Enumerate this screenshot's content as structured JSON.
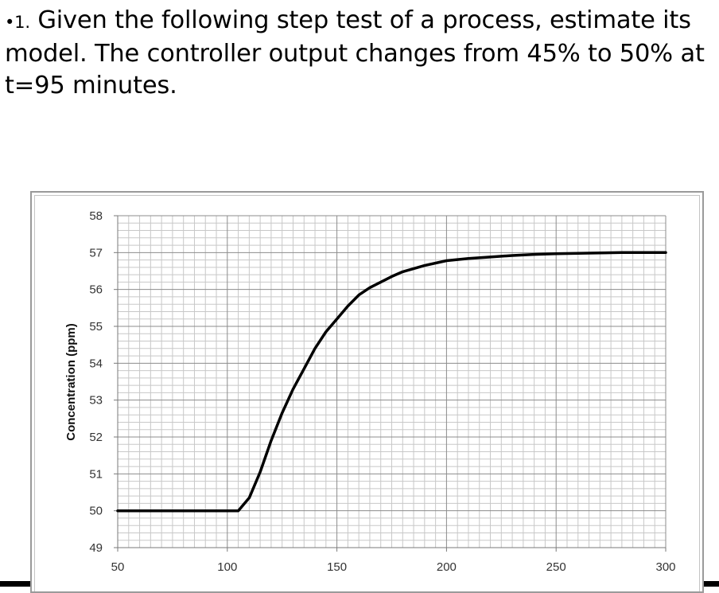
{
  "question": {
    "bullet": "•1.",
    "text": " Given the following step test of a process, estimate its model. The controller output changes from 45% to 50% at t=95 minutes."
  },
  "chart_data": {
    "type": "line",
    "title": "",
    "xlabel": "",
    "ylabel": "Concentration (ppm)",
    "xlim": [
      50,
      300
    ],
    "ylim": [
      49,
      58
    ],
    "xticks": [
      50,
      100,
      150,
      200,
      250,
      300
    ],
    "yticks": [
      49,
      50,
      51,
      52,
      53,
      54,
      55,
      56,
      57,
      58
    ],
    "grid": true,
    "legend": "none",
    "line_color": "#000000",
    "series": [
      {
        "x": [
          50,
          60,
          70,
          80,
          90,
          100,
          105,
          110,
          115,
          120,
          125,
          130,
          135,
          140,
          145,
          150,
          155,
          160,
          165,
          170,
          175,
          180,
          190,
          200,
          210,
          220,
          230,
          240,
          250,
          260,
          270,
          280,
          290,
          300
        ],
        "y": [
          50.0,
          50.0,
          50.0,
          50.0,
          50.0,
          50.0,
          50.0,
          50.35,
          51.05,
          51.9,
          52.65,
          53.3,
          53.85,
          54.4,
          54.85,
          55.2,
          55.55,
          55.85,
          56.05,
          56.2,
          56.35,
          56.48,
          56.65,
          56.78,
          56.84,
          56.88,
          56.92,
          56.95,
          56.97,
          56.98,
          56.99,
          57.0,
          57.0,
          57.0
        ]
      }
    ]
  }
}
